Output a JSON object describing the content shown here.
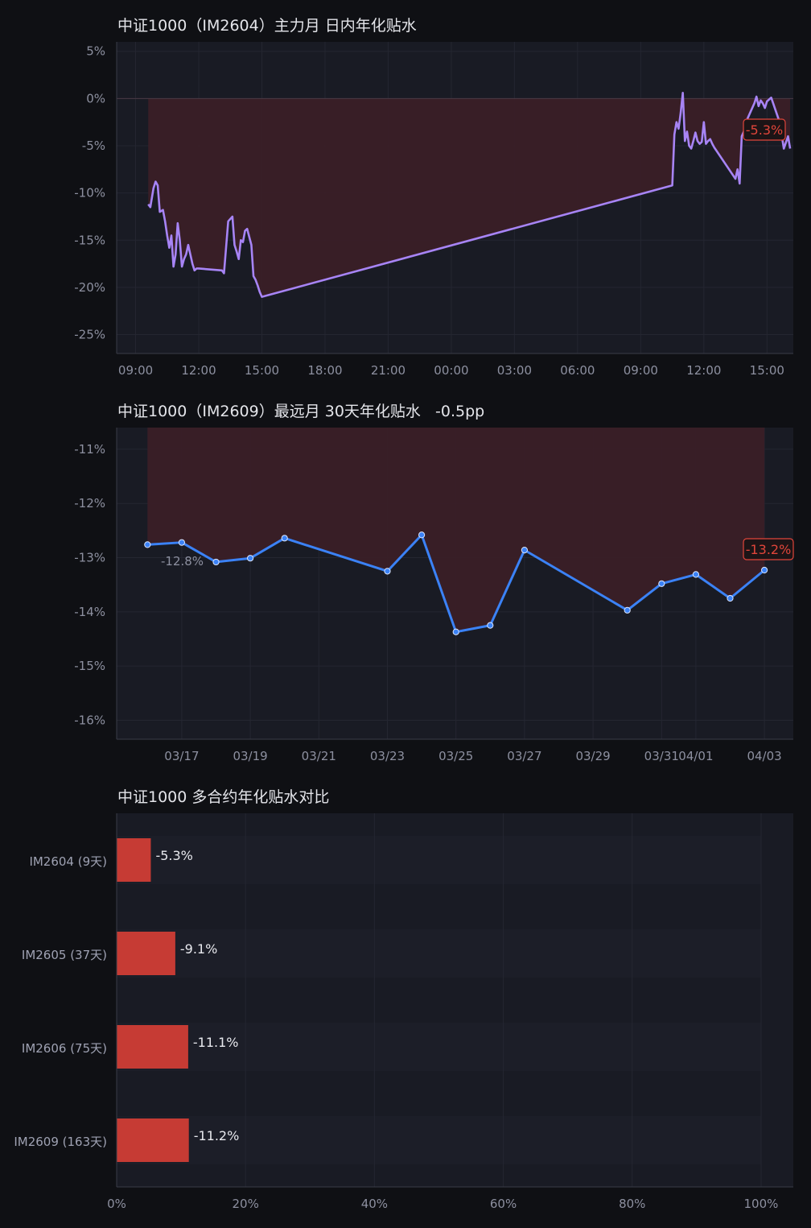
{
  "colors": {
    "background": "#0f1014",
    "plot_bg": "#191b24",
    "grid": "#242631",
    "axis": "#3a3c48",
    "fill_area": "#3a1f27",
    "line1": "#a784f5",
    "line2": "#3b82f6",
    "bar": "#c63b34",
    "badge": "#e0453a"
  },
  "chart_data": [
    {
      "type": "area",
      "title": "中证1000（IM2604）主力月 日内年化贴水",
      "y_ticks": [
        "5%",
        "0%",
        "-5%",
        "-10%",
        "-15%",
        "-20%",
        "-25%"
      ],
      "x_ticks": [
        "09:00",
        "12:00",
        "15:00",
        "18:00",
        "21:00",
        "00:00",
        "03:00",
        "06:00",
        "09:00",
        "12:00",
        "15:00"
      ],
      "ylim": [
        -27,
        6
      ],
      "xlim_hours": [
        8.1,
        40.25
      ],
      "grid": true,
      "latest_badge": "-5.3%",
      "series": [
        {
          "x": [
            9.6,
            9.7,
            9.85,
            9.95,
            10.05,
            10.15,
            10.3,
            10.4,
            10.5,
            10.6,
            10.7,
            10.8,
            10.9,
            11.0,
            11.1,
            11.2,
            11.3,
            11.4,
            11.5,
            11.6,
            11.7,
            11.8,
            11.9,
            12.0,
            13.1,
            13.2,
            13.4,
            13.6,
            13.7,
            13.8,
            13.9,
            14.0,
            14.1,
            14.2,
            14.3,
            14.5,
            14.6,
            14.7,
            14.8,
            14.9,
            15.0,
            34.5,
            34.6,
            34.7,
            34.8,
            34.9,
            35.0,
            35.1,
            35.2,
            35.3,
            35.4,
            35.5,
            35.6,
            35.7,
            35.8,
            35.9,
            36.0,
            36.1,
            36.2,
            36.3,
            36.4,
            36.5,
            37.5,
            37.6,
            37.7,
            37.8,
            37.9,
            38.0,
            38.2,
            38.4,
            38.5,
            38.6,
            38.7,
            38.8,
            38.9,
            39.0,
            39.2,
            39.4,
            39.6,
            39.8,
            40.0,
            40.1
          ],
          "y": [
            -11.2,
            -11.5,
            -9.5,
            -8.8,
            -9.2,
            -12.0,
            -11.8,
            -13.0,
            -14.5,
            -15.8,
            -14.5,
            -17.8,
            -16.5,
            -13.2,
            -15.0,
            -17.8,
            -17.0,
            -16.5,
            -15.5,
            -16.5,
            -17.5,
            -18.2,
            -18.0,
            -18.0,
            -18.2,
            -18.5,
            -13.0,
            -12.5,
            -15.5,
            -16.2,
            -17.0,
            -15.0,
            -15.2,
            -14.0,
            -13.8,
            -15.5,
            -18.8,
            -19.2,
            -19.8,
            -20.5,
            -21.0,
            -9.2,
            -3.8,
            -2.5,
            -3.2,
            -1.5,
            0.6,
            -4.5,
            -3.5,
            -5.0,
            -5.3,
            -4.5,
            -3.6,
            -4.5,
            -4.8,
            -4.6,
            -2.5,
            -4.8,
            -4.5,
            -4.3,
            -4.8,
            -5.2,
            -8.5,
            -7.5,
            -9.0,
            -4.0,
            -3.5,
            -2.5,
            -1.5,
            -0.5,
            0.2,
            -0.8,
            -0.2,
            -0.5,
            -1.0,
            -0.3,
            0.1,
            -1.2,
            -2.5,
            -5.3,
            -4.0,
            -5.3
          ]
        }
      ]
    },
    {
      "type": "line",
      "title": "中证1000（IM2609）最远月 30天年化贴水   -0.5pp",
      "y_ticks": [
        "-11%",
        "-12%",
        "-13%",
        "-14%",
        "-15%",
        "-16%"
      ],
      "x_ticks": [
        "03/17",
        "03/19",
        "03/21",
        "03/23",
        "03/25",
        "03/27",
        "03/29",
        "03/31",
        "04/01",
        "04/03"
      ],
      "ylim": [
        -16.35,
        -10.6
      ],
      "grid": true,
      "first_label": "-12.8%",
      "latest_badge": "-13.2%",
      "series": [
        {
          "x": [
            "03/16",
            "03/17",
            "03/18",
            "03/19",
            "03/20",
            "03/23",
            "03/24",
            "03/25",
            "03/26",
            "03/27",
            "03/30",
            "03/31",
            "04/01",
            "04/02",
            "04/03"
          ],
          "y": [
            -12.76,
            -12.72,
            -13.08,
            -13.01,
            -12.64,
            -13.25,
            -12.58,
            -14.37,
            -14.25,
            -12.86,
            -13.97,
            -13.48,
            -13.31,
            -13.75,
            -13.23
          ]
        }
      ]
    },
    {
      "type": "bar",
      "orientation": "horizontal",
      "title": "中证1000 多合约年化贴水对比",
      "categories": [
        "IM2604 (9天)",
        "IM2605 (37天)",
        "IM2606 (75天)",
        "IM2609 (163天)"
      ],
      "values": [
        5.3,
        9.1,
        11.1,
        11.2
      ],
      "value_labels": [
        "-5.3%",
        "-9.1%",
        "-11.1%",
        "-11.2%"
      ],
      "x_ticks": [
        "0%",
        "20%",
        "40%",
        "60%",
        "80%",
        "100%"
      ],
      "xlim": [
        0,
        105
      ],
      "grid": true
    }
  ]
}
